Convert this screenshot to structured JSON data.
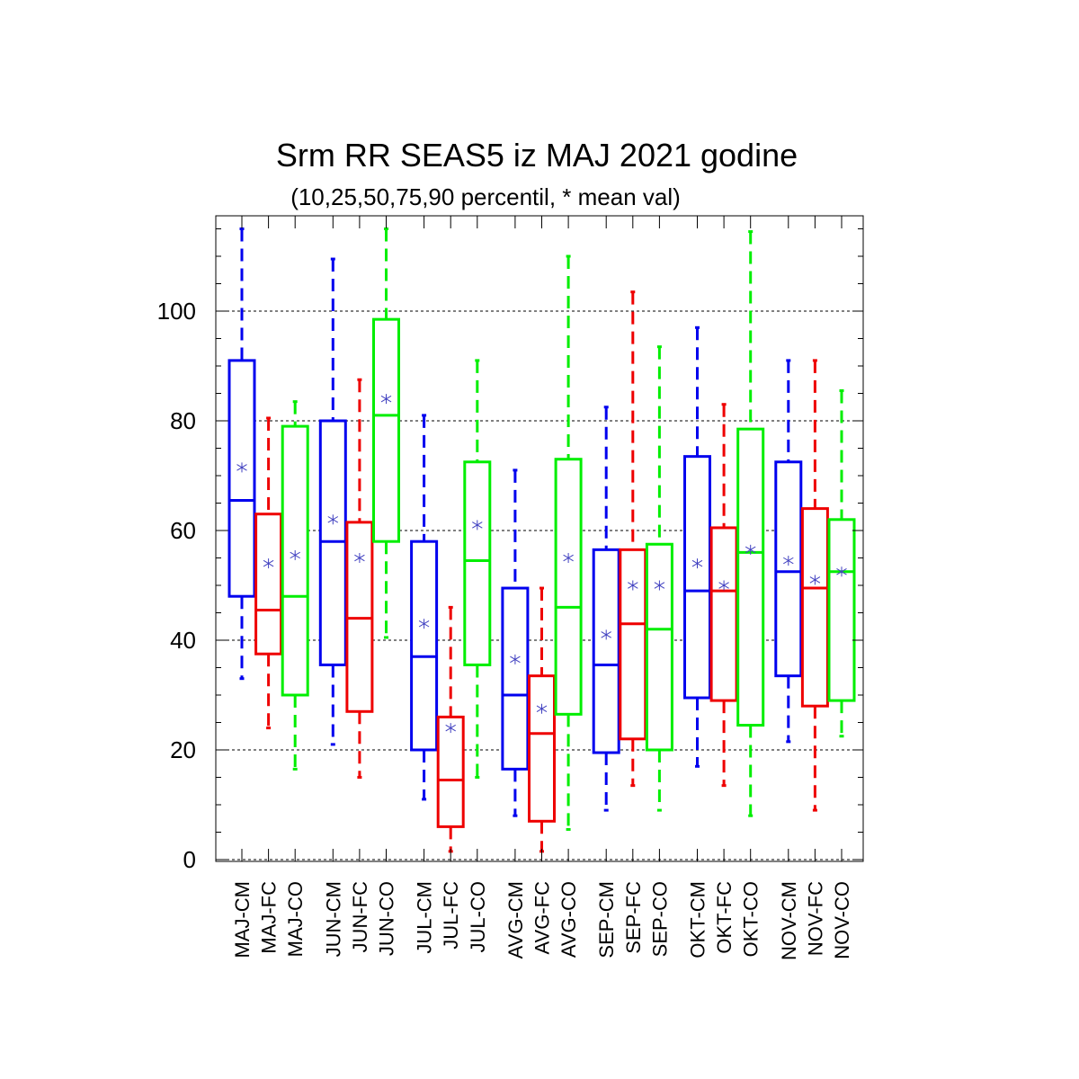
{
  "chart_data": {
    "type": "boxplot",
    "title": "Srm RR SEAS5 iz MAJ 2021 godine",
    "subtitle": "(10,25,50,75,90 percentil, * mean val)",
    "xlabel": "",
    "ylabel": "",
    "ylim": [
      0,
      118
    ],
    "yticks": [
      0,
      20,
      40,
      60,
      80,
      100
    ],
    "grid": "horizontal dashed",
    "colors": {
      "CM": "#0000ee",
      "FC": "#ee0000",
      "CO": "#00ee00"
    },
    "categories": [
      "MAJ-CM",
      "MAJ-FC",
      "MAJ-CO",
      "JUN-CM",
      "JUN-FC",
      "JUN-CO",
      "JUL-CM",
      "JUL-FC",
      "JUL-CO",
      "AVG-CM",
      "AVG-FC",
      "AVG-CO",
      "SEP-CM",
      "SEP-FC",
      "SEP-CO",
      "OKT-CM",
      "OKT-FC",
      "OKT-CO",
      "NOV-CM",
      "NOV-FC",
      "NOV-CO"
    ],
    "series_type": [
      "CM",
      "FC",
      "CO",
      "CM",
      "FC",
      "CO",
      "CM",
      "FC",
      "CO",
      "CM",
      "FC",
      "CO",
      "CM",
      "FC",
      "CO",
      "CM",
      "FC",
      "CO",
      "CM",
      "FC",
      "CO"
    ],
    "boxes": [
      {
        "p10": 33,
        "p25": 48,
        "p50": 65.5,
        "p75": 91,
        "p90": 115,
        "mean": 71.5
      },
      {
        "p10": 24,
        "p25": 37.5,
        "p50": 45.5,
        "p75": 63,
        "p90": 80.5,
        "mean": 54
      },
      {
        "p10": 16.5,
        "p25": 30,
        "p50": 48,
        "p75": 79,
        "p90": 83.5,
        "mean": 55.5
      },
      {
        "p10": 21,
        "p25": 35.5,
        "p50": 58,
        "p75": 80,
        "p90": 109.5,
        "mean": 62
      },
      {
        "p10": 15,
        "p25": 27,
        "p50": 44,
        "p75": 61.5,
        "p90": 87.5,
        "mean": 55
      },
      {
        "p10": 40.5,
        "p25": 58,
        "p50": 81,
        "p75": 98.5,
        "p90": 115,
        "mean": 84
      },
      {
        "p10": 11,
        "p25": 20,
        "p50": 37,
        "p75": 58,
        "p90": 81,
        "mean": 43
      },
      {
        "p10": 1.5,
        "p25": 6,
        "p50": 14.5,
        "p75": 26,
        "p90": 46,
        "mean": 24
      },
      {
        "p10": 15,
        "p25": 35.5,
        "p50": 54.5,
        "p75": 72.5,
        "p90": 91,
        "mean": 61
      },
      {
        "p10": 8,
        "p25": 16.5,
        "p50": 30,
        "p75": 49.5,
        "p90": 71,
        "mean": 36.5
      },
      {
        "p10": 1.5,
        "p25": 7,
        "p50": 23,
        "p75": 33.5,
        "p90": 49.5,
        "mean": 27.5
      },
      {
        "p10": 5.5,
        "p25": 26.5,
        "p50": 46,
        "p75": 73,
        "p90": 110,
        "mean": 55
      },
      {
        "p10": 9,
        "p25": 19.5,
        "p50": 35.5,
        "p75": 56.5,
        "p90": 82.5,
        "mean": 41
      },
      {
        "p10": 13.5,
        "p25": 22,
        "p50": 43,
        "p75": 56.5,
        "p90": 103.5,
        "mean": 50
      },
      {
        "p10": 9,
        "p25": 20,
        "p50": 42,
        "p75": 57.5,
        "p90": 93.5,
        "mean": 50
      },
      {
        "p10": 17,
        "p25": 29.5,
        "p50": 49,
        "p75": 73.5,
        "p90": 97,
        "mean": 54
      },
      {
        "p10": 13.5,
        "p25": 29,
        "p50": 49,
        "p75": 60.5,
        "p90": 83,
        "mean": 50
      },
      {
        "p10": 8,
        "p25": 24.5,
        "p50": 56,
        "p75": 78.5,
        "p90": 114.5,
        "mean": 56.5
      },
      {
        "p10": 21.5,
        "p25": 33.5,
        "p50": 52.5,
        "p75": 72.5,
        "p90": 91,
        "mean": 54.5
      },
      {
        "p10": 9,
        "p25": 28,
        "p50": 49.5,
        "p75": 64,
        "p90": 91,
        "mean": 51
      },
      {
        "p10": 22.5,
        "p25": 29,
        "p50": 52.5,
        "p75": 62,
        "p90": 85.5,
        "mean": 52.5
      }
    ]
  }
}
